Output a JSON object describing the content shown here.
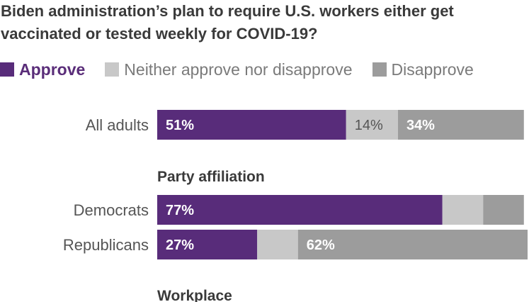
{
  "title": "Biden administration’s plan to require U.S. workers either get vaccinated or tested weekly for COVID-19?",
  "legend": [
    {
      "label": "Approve",
      "color": "#582c7a"
    },
    {
      "label": "Neither approve nor disapprove",
      "color": "#c8c8c8"
    },
    {
      "label": "Disapprove",
      "color": "#9c9c9c"
    }
  ],
  "sections": [
    "Party affiliation",
    "Workplace"
  ],
  "chart_data": {
    "type": "bar",
    "orientation": "horizontal",
    "stacked": true,
    "title": "Biden administration’s plan to require U.S. workers either get vaccinated or tested weekly for COVID-19?",
    "categories": [
      "All adults",
      "Democrats",
      "Republicans"
    ],
    "series": [
      {
        "name": "Approve",
        "values": [
          51,
          77,
          27
        ],
        "labels": [
          "51%",
          "77%",
          "27%"
        ]
      },
      {
        "name": "Neither approve nor disapprove",
        "values": [
          14,
          11,
          11
        ],
        "labels": [
          "14%",
          "",
          ""
        ]
      },
      {
        "name": "Disapprove",
        "values": [
          34,
          11,
          62
        ],
        "labels": [
          "34%",
          "",
          "62%"
        ]
      }
    ],
    "xlim": [
      0,
      100
    ],
    "grid": false,
    "legend_position": "top"
  }
}
